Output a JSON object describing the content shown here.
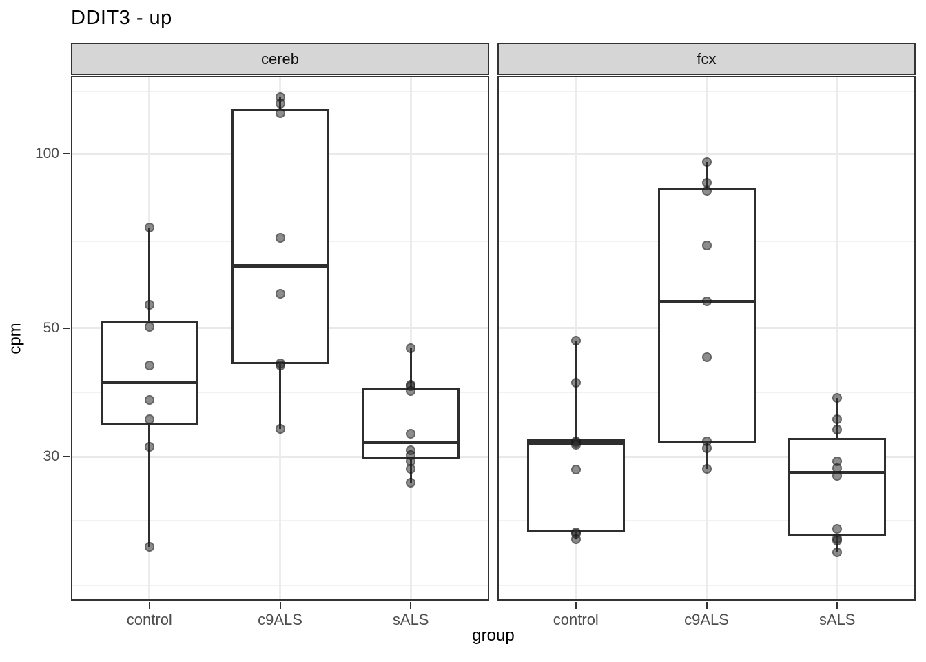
{
  "colors": {
    "panel_border": "#333333",
    "strip_background": "#d6d6d6",
    "grid_major": "#e9e9e9",
    "grid_minor": "#f1f1f1",
    "box_stroke": "#2e2e2e",
    "point": "rgba(47,47,47,0.55)",
    "tick_text": "#4d4d4d",
    "text": "#000000"
  },
  "chart_data": {
    "type": "boxplot",
    "title": "DDIT3 - up",
    "xlabel": "group",
    "ylabel": "cpm",
    "y_scale": "log10",
    "ylim": [
      16.94,
      136.3
    ],
    "y_ticks": [
      100,
      50,
      30
    ],
    "y_minor_gridlines": [
      127.9,
      70.7,
      38.7,
      23.25,
      18.0
    ],
    "grid": true,
    "legend": "none",
    "categories": [
      "control",
      "c9ALS",
      "sALS"
    ],
    "facets": [
      {
        "name": "cereb",
        "groups": [
          {
            "category": "control",
            "points": [
              74.6,
              54.9,
              50.3,
              43.1,
              37.6,
              34.8,
              31.2,
              21.0
            ],
            "box": {
              "q1": 34.0,
              "median": 40.3,
              "q3": 51.4,
              "whisker_low": 21.0,
              "whisker_high": 74.6
            }
          },
          {
            "category": "c9ALS",
            "points": [
              125.2,
              122.2,
              117.6,
              71.6,
              57.3,
              43.5,
              43.1,
              33.5
            ],
            "box": {
              "q1": 43.4,
              "median": 64.1,
              "q3": 119.5,
              "whisker_low": 33.5,
              "whisker_high": 125.2
            }
          },
          {
            "category": "sALS",
            "points": [
              46.2,
              39.9,
              39.7,
              39.0,
              32.9,
              30.8,
              30.2,
              29.5,
              28.6,
              27.1
            ],
            "box": {
              "q1": 29.8,
              "median": 31.8,
              "q3": 39.4,
              "whisker_low": 27.1,
              "whisker_high": 46.2
            }
          }
        ]
      },
      {
        "name": "fcx",
        "groups": [
          {
            "category": "control",
            "points": [
              47.6,
              40.3,
              31.9,
              31.7,
              31.5,
              28.5,
              22.2,
              22.1,
              21.6
            ],
            "box": {
              "q1": 22.2,
              "median": 31.7,
              "q3": 32.2,
              "whisker_low": 21.6,
              "whisker_high": 47.6
            }
          },
          {
            "category": "c9ALS",
            "points": [
              96.8,
              89.1,
              86.2,
              69.5,
              55.6,
              44.6,
              31.9,
              31.0,
              28.6
            ],
            "box": {
              "q1": 31.6,
              "median": 55.6,
              "q3": 87.4,
              "whisker_low": 28.6,
              "whisker_high": 96.8
            }
          },
          {
            "category": "sALS",
            "points": [
              37.9,
              34.8,
              33.4,
              29.5,
              28.7,
              27.8,
              22.5,
              21.7,
              21.5,
              20.5
            ],
            "box": {
              "q1": 21.9,
              "median": 28.2,
              "q3": 32.3,
              "whisker_low": 20.5,
              "whisker_high": 37.9
            }
          }
        ]
      }
    ]
  }
}
